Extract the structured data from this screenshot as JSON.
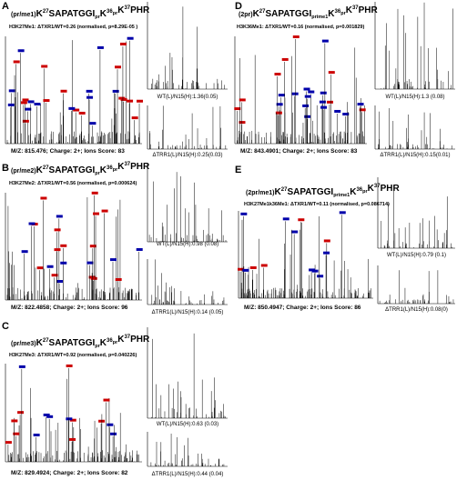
{
  "panels": [
    {
      "label": "A",
      "title": [
        "(pr/me1)",
        "K",
        "27",
        "SAPATGGI",
        "pr",
        "K",
        "36",
        "pr",
        "K",
        "37",
        "PHR"
      ],
      "subtitle": "H3K27Me1: ΔTXR1/WT=0.26 (normalised, p=8.29E-05 )",
      "footer": "M/Z: 815.476; Charge: 2+; Ions Score: 83",
      "captions": [
        "WT(L)/N15(H):1.36(0.05)",
        "ΔTRR1(L)/N15(H):0.25(0.03)"
      ]
    },
    {
      "label": "B",
      "title": [
        "(pr/me2)",
        "K",
        "27",
        "SAPATGGI",
        "pr",
        "K",
        "36",
        "pr",
        "K",
        "37",
        "PHR"
      ],
      "subtitle": "H3K27Me2: ΔTXR1/WT=0.56 (normalised, p=0.000624)",
      "footer": "M/Z: 822.4858; Charge: 2+; Ions Score: 96",
      "captions": [
        "WT(L)/N15(H):0.98 (0.08)",
        "ΔTRR1(L)/N15(H):0.14 (0.05)"
      ]
    },
    {
      "label": "C",
      "title": [
        "(pr/me3)",
        "K",
        "27",
        "SAPATGGI",
        "pr",
        "K",
        "36",
        "pr",
        "K",
        "37",
        "PHR"
      ],
      "subtitle": "H3K27Me3: ΔTXR1/WT=0.92 (normalised, p=0.040226)",
      "footer": "M/Z: 829.4924; Charge: 2+; Ions Score: 82",
      "captions": [
        "WT(L)/N15(H):0.63 (0.03)",
        "ΔTRR1(L)/N15(H):0.44 (0.04)"
      ]
    },
    {
      "label": "D",
      "title": [
        "(2pr)",
        "K",
        "27",
        "SAPATGGI",
        "prime1",
        "K",
        "36",
        "pr",
        "K",
        "37",
        "PHR"
      ],
      "subtitle": "H3K36Me1: ΔTXR1/WT=0.16 (normalised, p=0.001829)",
      "footer": "M/Z: 843.4901; Charge: 2+; Ions Score: 83",
      "captions": [
        "WT(L)/N15(H):1.3 (0.08)",
        "ΔTRR1(L)/N15(H):0.15(0.01)"
      ]
    },
    {
      "label": "E",
      "title": [
        "(2pr/me1)",
        "K",
        "27",
        "SAPATGGI",
        "prime1",
        "K",
        "36",
        "pr",
        "K",
        "37",
        "PHR"
      ],
      "subtitle": "H3K27Me1k36Me1: ΔTXR1/WT=0.11 (normalised, p=0.086714)",
      "footer": "M/Z: 850.4947; Charge: 2+; Ions Score: 86",
      "captions": [
        "WT(L)/N15(H):0.79 (0.1)",
        "ΔTRR1(L)/N15(H):0.08(0)"
      ]
    }
  ]
}
